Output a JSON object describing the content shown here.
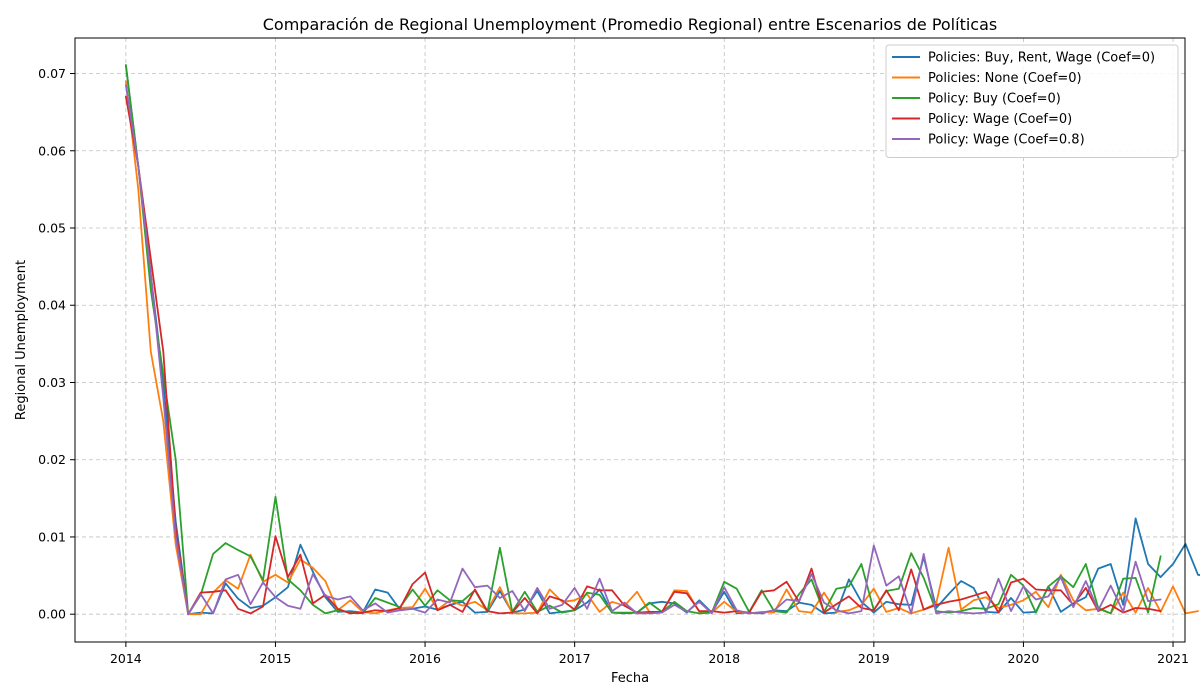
{
  "chart_data": {
    "type": "line",
    "title": "Comparación de Regional Unemployment (Promedio Regional) entre Escenarios de Políticas",
    "xlabel": "Fecha",
    "ylabel": "Regional Unemployment",
    "xlim": [
      2013.66,
      2021.08
    ],
    "ylim": [
      -0.0036,
      0.0746
    ],
    "xticks": [
      2014,
      2015,
      2016,
      2017,
      2018,
      2019,
      2020,
      2021
    ],
    "xtick_labels": [
      "2014",
      "2015",
      "2016",
      "2017",
      "2018",
      "2019",
      "2020",
      "2021"
    ],
    "yticks": [
      0.0,
      0.01,
      0.02,
      0.03,
      0.04,
      0.05,
      0.06,
      0.07
    ],
    "ytick_labels": [
      "0.00",
      "0.01",
      "0.02",
      "0.03",
      "0.04",
      "0.05",
      "0.06",
      "0.07"
    ],
    "grid": true,
    "legend_position": "top-right",
    "x_start_year": 2014,
    "x_step_months": 1,
    "series": [
      {
        "name": "Policies: Buy, Rent, Wage (Coef=0)",
        "color": "#1f77b4",
        "values": [
          0.071,
          0.058,
          0.044,
          0.03,
          0.012,
          0.0,
          0.0002,
          0.0001,
          0.004,
          0.002,
          0.0008,
          0.0011,
          0.0022,
          0.0035,
          0.009,
          0.0055,
          0.0022,
          0.0003,
          0.0004,
          0.0002,
          0.0032,
          0.0028,
          0.0006,
          0.0007,
          0.001,
          0.0006,
          0.0012,
          0.0016,
          0.0002,
          0.0003,
          0.003,
          0.0002,
          0.0006,
          0.003,
          0.0001,
          0.0003,
          0.0005,
          0.0015,
          0.0032,
          0.0002,
          0.0001,
          0.0002,
          0.0014,
          0.0016,
          0.0014,
          0.0002,
          0.0018,
          0.0002,
          0.0029,
          0.0001,
          0.0002,
          0.0001,
          0.0005,
          0.0004,
          0.0015,
          0.0012,
          0.0001,
          0.0002,
          0.0045,
          0.0016,
          0.0002,
          0.0016,
          0.0013,
          0.0012,
          0.0074,
          0.0008,
          0.0026,
          0.0043,
          0.0034,
          0.0003,
          0.0002,
          0.0021,
          0.0002,
          0.0003,
          0.0036,
          0.0003,
          0.0014,
          0.0022,
          0.0059,
          0.0065,
          0.0012,
          0.0124,
          0.0065,
          0.0048,
          0.0065,
          0.0091,
          0.0051,
          0.0049,
          0.0049,
          0.0048
        ]
      },
      {
        "name": "Policies: None (Coef=0)",
        "color": "#ff7f0e",
        "values": [
          0.069,
          0.055,
          0.034,
          0.025,
          0.009,
          0.0,
          0.0,
          0.0028,
          0.0044,
          0.0033,
          0.0077,
          0.0042,
          0.0051,
          0.0041,
          0.0071,
          0.006,
          0.0043,
          0.0005,
          0.0018,
          0.0003,
          0.0001,
          0.0005,
          0.0008,
          0.0009,
          0.0033,
          0.0006,
          0.0018,
          0.0011,
          0.0016,
          0.0005,
          0.0035,
          0.0001,
          0.0001,
          0.0002,
          0.0032,
          0.0016,
          0.0018,
          0.0026,
          0.0003,
          0.0016,
          0.0011,
          0.0029,
          0.0003,
          0.0002,
          0.0031,
          0.003,
          0.0003,
          0.0002,
          0.0016,
          0.0003,
          0.0001,
          0.0003,
          0.0002,
          0.0032,
          0.0004,
          0.0002,
          0.0028,
          0.0003,
          0.0005,
          0.0012,
          0.0033,
          0.0003,
          0.0008,
          0.0001,
          0.0006,
          0.0014,
          0.0086,
          0.0006,
          0.0018,
          0.0022,
          0.0008,
          0.0012,
          0.0018,
          0.0029,
          0.0009,
          0.0051,
          0.0018,
          0.0005,
          0.0007,
          0.0001,
          0.0028,
          0.0002,
          0.0034,
          0.0003,
          0.0036,
          0.0001,
          0.0004
        ]
      },
      {
        "name": "Policy: Buy (Coef=0)",
        "color": "#2ca02c",
        "values": [
          0.0711,
          0.058,
          0.042,
          0.031,
          0.02,
          0.0,
          0.0025,
          0.0078,
          0.0092,
          0.0083,
          0.0075,
          0.0044,
          0.0152,
          0.0045,
          0.0031,
          0.0012,
          0.0001,
          0.0005,
          0.0002,
          0.0001,
          0.0021,
          0.0015,
          0.0009,
          0.0032,
          0.0011,
          0.0031,
          0.0018,
          0.0017,
          0.0031,
          0.0003,
          0.0086,
          0.0003,
          0.0029,
          0.0003,
          0.0011,
          0.0002,
          0.0005,
          0.0028,
          0.0025,
          0.0002,
          0.0002,
          0.0002,
          0.0015,
          0.0003,
          0.0016,
          0.0004,
          0.0001,
          0.0002,
          0.0042,
          0.0033,
          0.0003,
          0.0031,
          0.0004,
          0.0002,
          0.0026,
          0.0045,
          0.0003,
          0.0033,
          0.0036,
          0.0065,
          0.0005,
          0.003,
          0.0033,
          0.0079,
          0.0047,
          0.0004,
          0.0002,
          0.0004,
          0.0008,
          0.0007,
          0.0013,
          0.0051,
          0.0037,
          0.0002,
          0.0036,
          0.0049,
          0.0035,
          0.0065,
          0.0008,
          0.0001,
          0.0046,
          0.0047,
          0.0002,
          0.0075
        ]
      },
      {
        "name": "Policy: Wage (Coef=0)",
        "color": "#d62728",
        "values": [
          0.067,
          0.058,
          0.046,
          0.034,
          0.011,
          0.0,
          0.0028,
          0.0029,
          0.0031,
          0.0007,
          0.0001,
          0.001,
          0.0101,
          0.0048,
          0.0077,
          0.0014,
          0.0025,
          0.0007,
          0.0001,
          0.0002,
          0.0005,
          0.0004,
          0.0008,
          0.0039,
          0.0054,
          0.0005,
          0.0012,
          0.0003,
          0.0032,
          0.0004,
          0.0001,
          0.0002,
          0.0021,
          0.0001,
          0.0023,
          0.0018,
          0.0006,
          0.0036,
          0.0031,
          0.0031,
          0.0011,
          0.0002,
          0.0003,
          0.0003,
          0.0029,
          0.0027,
          0.0004,
          0.0004,
          0.0002,
          0.0004,
          0.0002,
          0.0029,
          0.0031,
          0.0042,
          0.0016,
          0.0059,
          0.0002,
          0.0013,
          0.0023,
          0.0008,
          0.0005,
          0.0031,
          0.0005,
          0.0058,
          0.0006,
          0.0012,
          0.0016,
          0.0019,
          0.0024,
          0.0029,
          0.0002,
          0.0041,
          0.0046,
          0.0032,
          0.0031,
          0.0031,
          0.0012,
          0.0034,
          0.0004,
          0.0012,
          0.0002,
          0.0008,
          0.0007,
          0.0004
        ]
      },
      {
        "name": "Policy: Wage (Coef=0.8)",
        "color": "#9467bd",
        "values": [
          0.0685,
          0.058,
          0.044,
          0.028,
          0.01,
          0.0,
          0.0026,
          0.0001,
          0.0045,
          0.0051,
          0.0013,
          0.0041,
          0.0022,
          0.0011,
          0.0007,
          0.0052,
          0.0024,
          0.0019,
          0.0023,
          0.0005,
          0.0014,
          0.0002,
          0.0005,
          0.0007,
          0.0002,
          0.0019,
          0.0015,
          0.0059,
          0.0035,
          0.0037,
          0.0021,
          0.003,
          0.0004,
          0.0034,
          0.0007,
          0.0012,
          0.0034,
          0.0007,
          0.0046,
          0.0004,
          0.0015,
          0.0001,
          0.0001,
          0.0002,
          0.0012,
          0.0003,
          0.0016,
          0.0001,
          0.0035,
          0.0005,
          0.0001,
          0.0002,
          0.0005,
          0.0019,
          0.0017,
          0.0052,
          0.0015,
          0.0005,
          0.0001,
          0.0004,
          0.0089,
          0.0037,
          0.0049,
          0.0001,
          0.0078,
          0.0001,
          0.0004,
          0.0002,
          0.0001,
          0.0002,
          0.0046,
          0.0004,
          0.0036,
          0.0019,
          0.0023,
          0.0048,
          0.0009,
          0.0043,
          0.0005,
          0.0037,
          0.0003,
          0.0068,
          0.0017,
          0.0019
        ]
      }
    ]
  }
}
